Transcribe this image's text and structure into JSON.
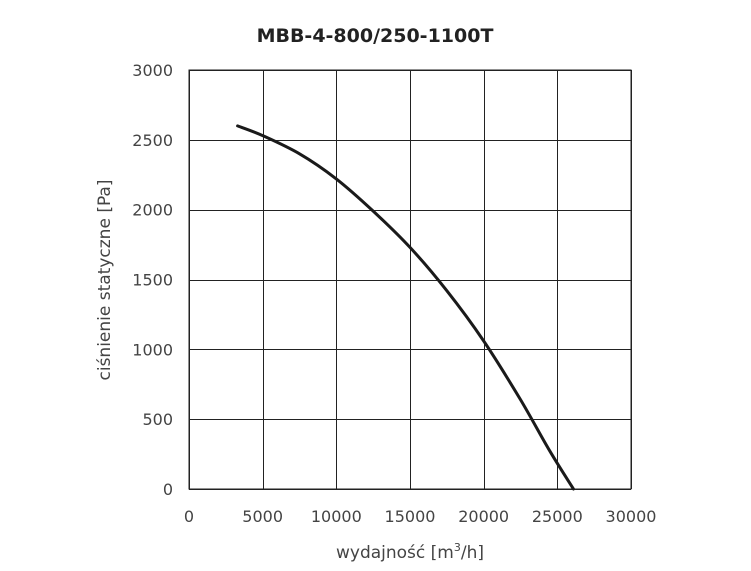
{
  "chart_data": {
    "type": "line",
    "title": "MBB-4-800/250-1100T",
    "xlabel": "wydajność [m³/h]",
    "xlabel_main": "wydajność [m",
    "xlabel_sup": "3",
    "xlabel_tail": "/h]",
    "ylabel": "ciśnienie statyczne [Pa]",
    "xlim": [
      0,
      30000
    ],
    "ylim": [
      0,
      3000
    ],
    "xticks": [
      0,
      5000,
      10000,
      15000,
      20000,
      25000,
      30000
    ],
    "yticks": [
      0,
      500,
      1000,
      1500,
      2000,
      2500,
      3000
    ],
    "grid": true,
    "series": [
      {
        "x": [
          3300,
          5000,
          7500,
          10000,
          12500,
          15000,
          17500,
          20000,
          22500,
          24500,
          26100
        ],
        "y": [
          2600,
          2530,
          2400,
          2220,
          1990,
          1730,
          1420,
          1060,
          640,
          270,
          0
        ]
      }
    ]
  }
}
